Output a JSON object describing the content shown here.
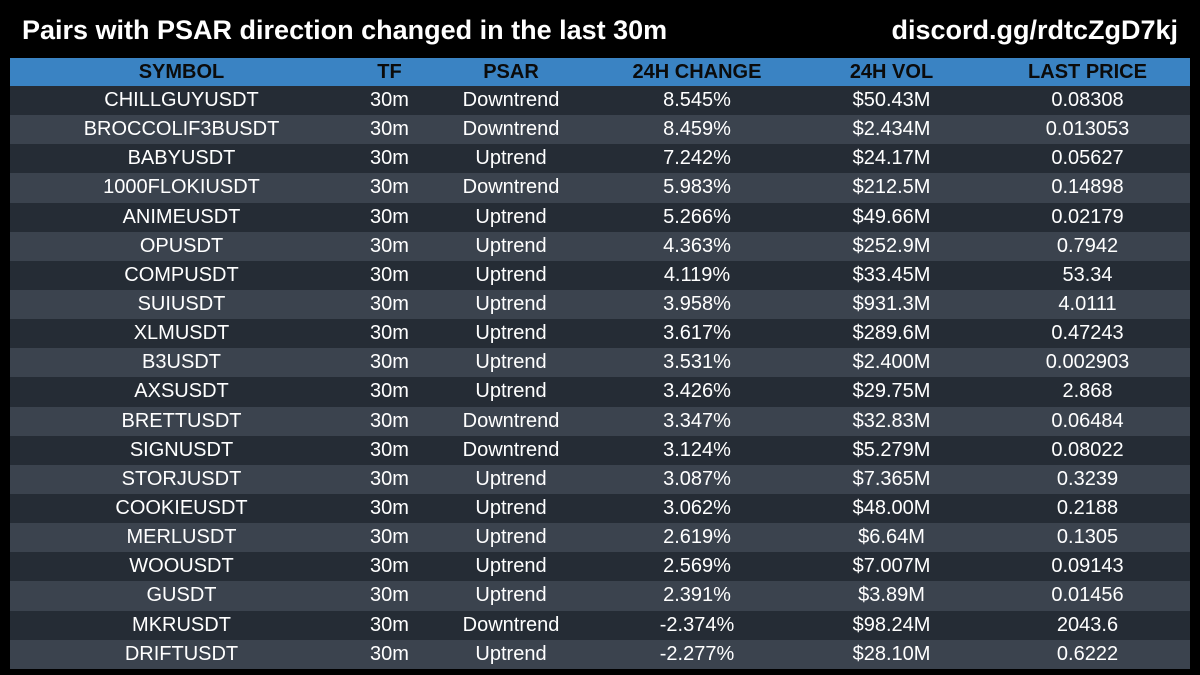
{
  "header": {
    "title": "Pairs with PSAR direction changed in the last 30m",
    "link": "discord.gg/rdtcZgD7kj"
  },
  "colors": {
    "background": "#000000",
    "header_row": "#3a83c3",
    "row_odd": "#252c35",
    "row_even": "#3b434e"
  },
  "table": {
    "columns": [
      "SYMBOL",
      "TF",
      "PSAR",
      "24H CHANGE",
      "24H VOL",
      "LAST PRICE"
    ],
    "rows": [
      [
        "CHILLGUYUSDT",
        "30m",
        "Downtrend",
        "8.545%",
        "$50.43M",
        "0.08308"
      ],
      [
        "BROCCOLIF3BUSDT",
        "30m",
        "Downtrend",
        "8.459%",
        "$2.434M",
        "0.013053"
      ],
      [
        "BABYUSDT",
        "30m",
        "Uptrend",
        "7.242%",
        "$24.17M",
        "0.05627"
      ],
      [
        "1000FLOKIUSDT",
        "30m",
        "Downtrend",
        "5.983%",
        "$212.5M",
        "0.14898"
      ],
      [
        "ANIMEUSDT",
        "30m",
        "Uptrend",
        "5.266%",
        "$49.66M",
        "0.02179"
      ],
      [
        "OPUSDT",
        "30m",
        "Uptrend",
        "4.363%",
        "$252.9M",
        "0.7942"
      ],
      [
        "COMPUSDT",
        "30m",
        "Uptrend",
        "4.119%",
        "$33.45M",
        "53.34"
      ],
      [
        "SUIUSDT",
        "30m",
        "Uptrend",
        "3.958%",
        "$931.3M",
        "4.0111"
      ],
      [
        "XLMUSDT",
        "30m",
        "Uptrend",
        "3.617%",
        "$289.6M",
        "0.47243"
      ],
      [
        "B3USDT",
        "30m",
        "Uptrend",
        "3.531%",
        "$2.400M",
        "0.002903"
      ],
      [
        "AXSUSDT",
        "30m",
        "Uptrend",
        "3.426%",
        "$29.75M",
        "2.868"
      ],
      [
        "BRETTUSDT",
        "30m",
        "Downtrend",
        "3.347%",
        "$32.83M",
        "0.06484"
      ],
      [
        "SIGNUSDT",
        "30m",
        "Downtrend",
        "3.124%",
        "$5.279M",
        "0.08022"
      ],
      [
        "STORJUSDT",
        "30m",
        "Uptrend",
        "3.087%",
        "$7.365M",
        "0.3239"
      ],
      [
        "COOKIEUSDT",
        "30m",
        "Uptrend",
        "3.062%",
        "$48.00M",
        "0.2188"
      ],
      [
        "MERLUSDT",
        "30m",
        "Uptrend",
        "2.619%",
        "$6.64M",
        "0.1305"
      ],
      [
        "WOOUSDT",
        "30m",
        "Uptrend",
        "2.569%",
        "$7.007M",
        "0.09143"
      ],
      [
        "GUSDT",
        "30m",
        "Uptrend",
        "2.391%",
        "$3.89M",
        "0.01456"
      ],
      [
        "MKRUSDT",
        "30m",
        "Downtrend",
        "-2.374%",
        "$98.24M",
        "2043.6"
      ],
      [
        "DRIFTUSDT",
        "30m",
        "Uptrend",
        "-2.277%",
        "$28.10M",
        "0.6222"
      ]
    ]
  }
}
